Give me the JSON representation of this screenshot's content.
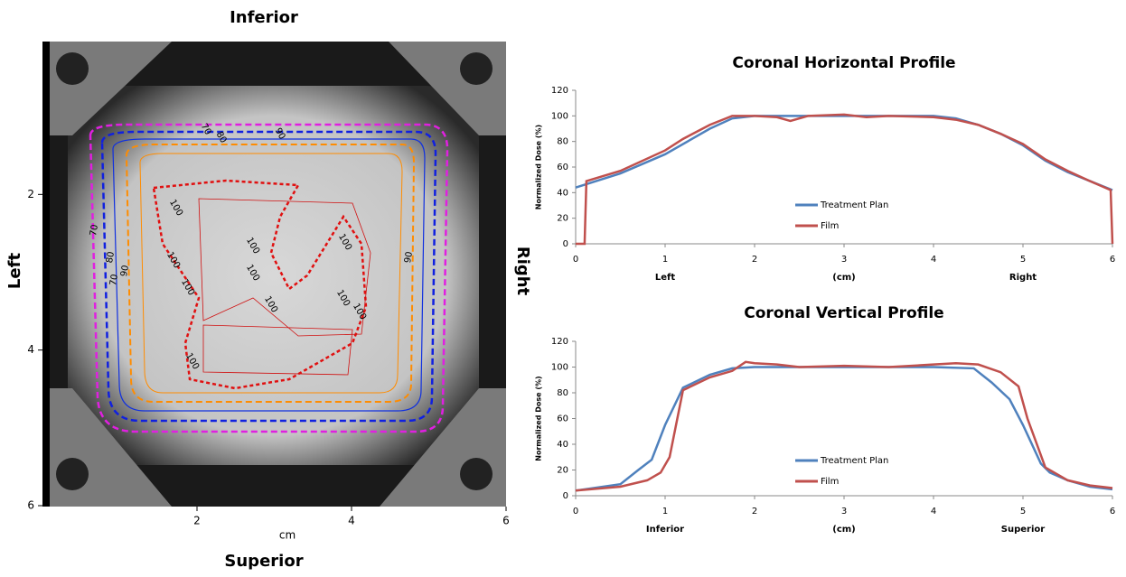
{
  "dose_map": {
    "top_label": "Inferior",
    "bottom_label": "Superior",
    "left_label": "Left",
    "right_label": "Right",
    "xlabel": "cm",
    "xlim": [
      0,
      6
    ],
    "ylim": [
      0,
      6
    ],
    "xticks": [
      2,
      4,
      6
    ],
    "yticks": [
      2,
      4,
      6
    ],
    "contour_labels": [
      "70",
      "80",
      "90",
      "70",
      "80",
      "90",
      "70",
      "90",
      "100",
      "100",
      "100",
      "100",
      "100",
      "100",
      "100",
      "100",
      "100",
      "100"
    ]
  },
  "chart_data": [
    {
      "type": "line",
      "title": "Coronal Horizontal Profile",
      "ylabel": "Normalized Dose (%)",
      "xlim": [
        0,
        6
      ],
      "ylim": [
        0,
        120
      ],
      "xticks": [
        0,
        1,
        2,
        3,
        4,
        5,
        6
      ],
      "yticks": [
        0,
        20,
        40,
        60,
        80,
        100,
        120
      ],
      "x_annotations": [
        {
          "value": 1,
          "label": "Left"
        },
        {
          "value": 3,
          "label": "(cm)"
        },
        {
          "value": 5,
          "label": "Right"
        }
      ],
      "series": [
        {
          "name": "Treatment Plan",
          "color": "#4f81bd",
          "x": [
            0,
            0.5,
            1,
            1.5,
            1.75,
            2,
            2.5,
            3,
            3.5,
            4,
            4.25,
            4.5,
            4.75,
            5,
            5.25,
            5.5,
            5.75,
            6
          ],
          "values": [
            44,
            55,
            70,
            90,
            98,
            100,
            100,
            100,
            100,
            100,
            98,
            93,
            86,
            77,
            65,
            56,
            49,
            42
          ]
        },
        {
          "name": "Film",
          "color": "#c0504d",
          "x": [
            0,
            0.1,
            0.12,
            0.5,
            1,
            1.2,
            1.5,
            1.75,
            2,
            2.25,
            2.4,
            2.6,
            3,
            3.25,
            3.5,
            4,
            4.25,
            4.5,
            4.75,
            5,
            5.25,
            5.5,
            5.75,
            5.98,
            6
          ],
          "values": [
            0,
            0,
            49,
            57,
            73,
            82,
            93,
            100,
            100,
            99,
            96,
            100,
            101,
            99,
            100,
            99,
            97,
            93,
            86,
            78,
            66,
            57,
            49,
            42,
            0
          ]
        }
      ]
    },
    {
      "type": "line",
      "title": "Coronal Vertical Profile",
      "ylabel": "Normalized Dose (%)",
      "xlim": [
        0,
        6
      ],
      "ylim": [
        0,
        120
      ],
      "xticks": [
        0,
        1,
        2,
        3,
        4,
        5,
        6
      ],
      "yticks": [
        0,
        20,
        40,
        60,
        80,
        100,
        120
      ],
      "x_annotations": [
        {
          "value": 1,
          "label": "Inferior"
        },
        {
          "value": 3,
          "label": "(cm)"
        },
        {
          "value": 5,
          "label": "Superior"
        }
      ],
      "series": [
        {
          "name": "Treatment Plan",
          "color": "#4f81bd",
          "x": [
            0,
            0.5,
            0.7,
            0.85,
            1,
            1.2,
            1.5,
            1.75,
            2,
            3,
            4,
            4.45,
            4.65,
            4.85,
            5,
            5.2,
            5.3,
            5.5,
            5.75,
            6
          ],
          "values": [
            4,
            9,
            20,
            28,
            55,
            84,
            94,
            99,
            100,
            100,
            100,
            99,
            88,
            75,
            55,
            25,
            18,
            12,
            7,
            5
          ]
        },
        {
          "name": "Film",
          "color": "#c0504d",
          "x": [
            0,
            0.5,
            0.8,
            0.95,
            1.05,
            1.2,
            1.5,
            1.75,
            1.9,
            2,
            2.25,
            2.5,
            3,
            3.5,
            4,
            4.25,
            4.5,
            4.75,
            4.95,
            5.05,
            5.25,
            5.5,
            5.75,
            6
          ],
          "values": [
            4,
            7,
            12,
            18,
            30,
            82,
            92,
            97,
            104,
            103,
            102,
            100,
            101,
            100,
            102,
            103,
            102,
            96,
            85,
            60,
            22,
            12,
            8,
            6
          ]
        }
      ]
    }
  ]
}
